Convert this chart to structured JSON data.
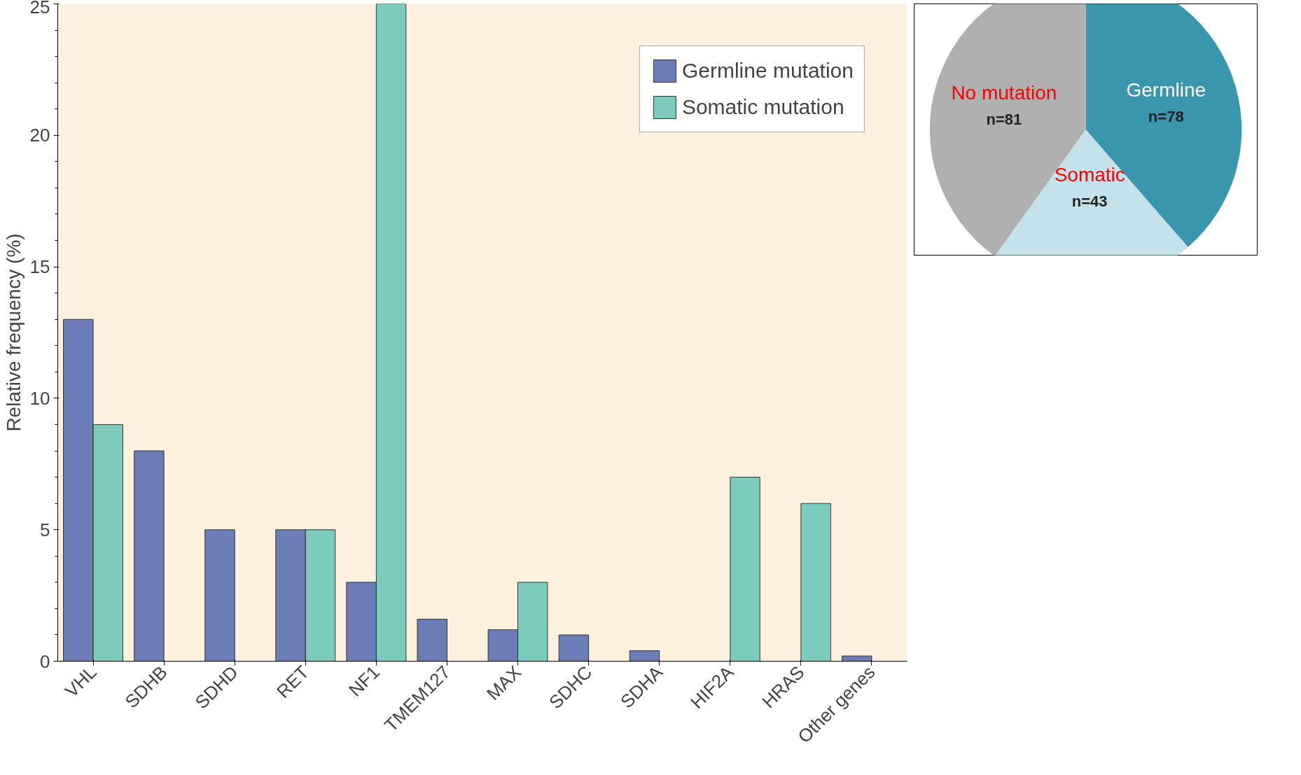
{
  "chart_data": [
    {
      "type": "bar",
      "ylabel": "Relative frequency (%)",
      "categories": [
        "VHL",
        "SDHB",
        "SDHD",
        "RET",
        "NF1",
        "TMEM127",
        "MAX",
        "SDHC",
        "SDHA",
        "HIF2A",
        "HRAS",
        "Other genes"
      ],
      "series": [
        {
          "name": "Germline mutation",
          "color": "#6a7db5",
          "values": [
            13,
            8,
            5,
            5,
            3,
            1.6,
            1.2,
            1,
            0.4,
            null,
            null,
            0.2
          ]
        },
        {
          "name": "Somatic mutation",
          "color": "#7dcbbd",
          "values": [
            9,
            null,
            null,
            5,
            25,
            null,
            3,
            null,
            null,
            7,
            6,
            null
          ]
        }
      ],
      "ylim": [
        0,
        25
      ],
      "yticks": [
        0,
        5,
        10,
        15,
        20,
        25
      ],
      "grid": false,
      "legend": "top right"
    },
    {
      "type": "pie",
      "categories": [
        "Germline",
        "Somatic",
        "No mutation"
      ],
      "values": [
        78,
        43,
        81
      ],
      "colors": [
        "#3a96ac",
        "#c4e2ec",
        "#b0b0b0"
      ],
      "value_labels": [
        "n=78",
        "n=43",
        "n=81"
      ]
    }
  ]
}
